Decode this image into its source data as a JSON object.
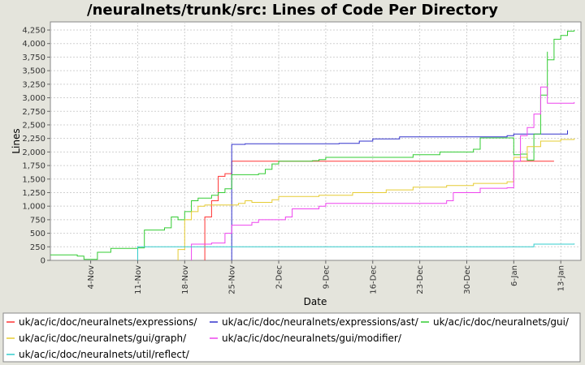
{
  "chart_data": {
    "type": "line",
    "title": "/neuralnets/trunk/src: Lines of Code Per Directory",
    "xlabel": "Date",
    "ylabel": "Lines",
    "ylim": [
      0,
      4400
    ],
    "y_ticks": [
      0,
      250,
      500,
      750,
      1000,
      1250,
      1500,
      1750,
      2000,
      2250,
      2500,
      2750,
      3000,
      3250,
      3500,
      3750,
      4000,
      4250
    ],
    "y_tick_labels": [
      "0",
      "250",
      "500",
      "750",
      "1,000",
      "1,250",
      "1,500",
      "1,750",
      "2,000",
      "2,250",
      "2,500",
      "2,750",
      "3,000",
      "3,250",
      "3,500",
      "3,750",
      "4,000",
      "4,250"
    ],
    "x_range": [
      "2004-10-29",
      "2005-01-16"
    ],
    "x_ticks": [
      "2004-11-04",
      "2004-11-11",
      "2004-11-18",
      "2004-11-25",
      "2004-12-02",
      "2004-12-09",
      "2004-12-16",
      "2004-12-23",
      "2004-12-30",
      "2005-01-06",
      "2005-01-13"
    ],
    "x_tick_labels": [
      "4-Nov",
      "11-Nov",
      "18-Nov",
      "25-Nov",
      "2-Dec",
      "9-Dec",
      "16-Dec",
      "23-Dec",
      "30-Dec",
      "6-Jan",
      "13-Jan"
    ],
    "grid": true,
    "legend_position": "bottom",
    "series": [
      {
        "name": "uk/ac/ic/doc/neuralnets/expressions/",
        "color": "#ff3333",
        "points": [
          [
            "2004-11-21",
            0
          ],
          [
            "2004-11-21",
            800
          ],
          [
            "2004-11-22",
            1100
          ],
          [
            "2004-11-23",
            1550
          ],
          [
            "2004-11-24",
            1600
          ],
          [
            "2004-11-25",
            1620
          ],
          [
            "2004-11-25",
            1830
          ],
          [
            "2005-01-12",
            1830
          ]
        ]
      },
      {
        "name": "uk/ac/ic/doc/neuralnets/expressions/ast/",
        "color": "#3333cc",
        "points": [
          [
            "2004-11-25",
            0
          ],
          [
            "2004-11-25",
            2140
          ],
          [
            "2004-11-27",
            2150
          ],
          [
            "2004-12-11",
            2160
          ],
          [
            "2004-12-14",
            2200
          ],
          [
            "2004-12-16",
            2240
          ],
          [
            "2004-12-20",
            2280
          ],
          [
            "2005-01-05",
            2300
          ],
          [
            "2005-01-06",
            2330
          ],
          [
            "2005-01-14",
            2340
          ],
          [
            "2005-01-14",
            2400
          ]
        ]
      },
      {
        "name": "uk/ac/ic/doc/neuralnets/gui/",
        "color": "#33cc33",
        "points": [
          [
            "2004-10-29",
            100
          ],
          [
            "2004-11-02",
            80
          ],
          [
            "2004-11-03",
            20
          ],
          [
            "2004-11-05",
            150
          ],
          [
            "2004-11-07",
            220
          ],
          [
            "2004-11-11",
            230
          ],
          [
            "2004-11-12",
            560
          ],
          [
            "2004-11-15",
            600
          ],
          [
            "2004-11-16",
            800
          ],
          [
            "2004-11-17",
            750
          ],
          [
            "2004-11-18",
            900
          ],
          [
            "2004-11-19",
            1100
          ],
          [
            "2004-11-20",
            1150
          ],
          [
            "2004-11-22",
            1200
          ],
          [
            "2004-11-23",
            1250
          ],
          [
            "2004-11-24",
            1320
          ],
          [
            "2004-11-25",
            1580
          ],
          [
            "2004-11-29",
            1600
          ],
          [
            "2004-11-30",
            1680
          ],
          [
            "2004-12-01",
            1780
          ],
          [
            "2004-12-02",
            1830
          ],
          [
            "2004-12-07",
            1840
          ],
          [
            "2004-12-08",
            1860
          ],
          [
            "2004-12-09",
            1900
          ],
          [
            "2004-12-22",
            1950
          ],
          [
            "2004-12-26",
            2000
          ],
          [
            "2004-12-31",
            2050
          ],
          [
            "2005-01-01",
            2260
          ],
          [
            "2005-01-05",
            2260
          ],
          [
            "2005-01-06",
            1950
          ],
          [
            "2005-01-07",
            1960
          ],
          [
            "2005-01-08",
            1850
          ],
          [
            "2005-01-09",
            2330
          ],
          [
            "2005-01-10",
            3050
          ],
          [
            "2005-01-11",
            3850
          ],
          [
            "2005-01-11",
            3700
          ],
          [
            "2005-01-12",
            4080
          ],
          [
            "2005-01-13",
            4150
          ],
          [
            "2005-01-14",
            4230
          ],
          [
            "2005-01-15",
            4250
          ]
        ]
      },
      {
        "name": "uk/ac/ic/doc/neuralnets/gui/graph/",
        "color": "#e6cc33",
        "points": [
          [
            "2004-11-17",
            0
          ],
          [
            "2004-11-17",
            200
          ],
          [
            "2004-11-18",
            750
          ],
          [
            "2004-11-19",
            900
          ],
          [
            "2004-11-20",
            1000
          ],
          [
            "2004-11-21",
            1020
          ],
          [
            "2004-11-26",
            1050
          ],
          [
            "2004-11-27",
            1100
          ],
          [
            "2004-11-28",
            1070
          ],
          [
            "2004-12-01",
            1120
          ],
          [
            "2004-12-02",
            1180
          ],
          [
            "2004-12-08",
            1200
          ],
          [
            "2004-12-13",
            1250
          ],
          [
            "2004-12-18",
            1300
          ],
          [
            "2004-12-22",
            1350
          ],
          [
            "2004-12-27",
            1380
          ],
          [
            "2004-12-31",
            1420
          ],
          [
            "2005-01-05",
            1450
          ],
          [
            "2005-01-06",
            1900
          ],
          [
            "2005-01-08",
            2100
          ],
          [
            "2005-01-10",
            2200
          ],
          [
            "2005-01-13",
            2230
          ],
          [
            "2005-01-15",
            2250
          ]
        ]
      },
      {
        "name": "uk/ac/ic/doc/neuralnets/gui/modifier/",
        "color": "#ee44ee",
        "points": [
          [
            "2004-11-19",
            0
          ],
          [
            "2004-11-19",
            300
          ],
          [
            "2004-11-22",
            320
          ],
          [
            "2004-11-24",
            500
          ],
          [
            "2004-11-25",
            650
          ],
          [
            "2004-11-28",
            700
          ],
          [
            "2004-11-29",
            750
          ],
          [
            "2004-12-03",
            800
          ],
          [
            "2004-12-04",
            950
          ],
          [
            "2004-12-08",
            1000
          ],
          [
            "2004-12-09",
            1050
          ],
          [
            "2004-12-27",
            1100
          ],
          [
            "2004-12-28",
            1250
          ],
          [
            "2005-01-01",
            1330
          ],
          [
            "2005-01-05",
            1340
          ],
          [
            "2005-01-06",
            1830
          ],
          [
            "2005-01-07",
            2300
          ],
          [
            "2005-01-08",
            2450
          ],
          [
            "2005-01-09",
            2700
          ],
          [
            "2005-01-10",
            3200
          ],
          [
            "2005-01-11",
            2900
          ],
          [
            "2005-01-15",
            2920
          ]
        ]
      },
      {
        "name": "uk/ac/ic/doc/neuralnets/util/reflect/",
        "color": "#33cccc",
        "points": [
          [
            "2004-11-11",
            0
          ],
          [
            "2004-11-11",
            250
          ],
          [
            "2005-01-09",
            260
          ],
          [
            "2005-01-09",
            300
          ],
          [
            "2005-01-15",
            310
          ]
        ]
      }
    ]
  }
}
